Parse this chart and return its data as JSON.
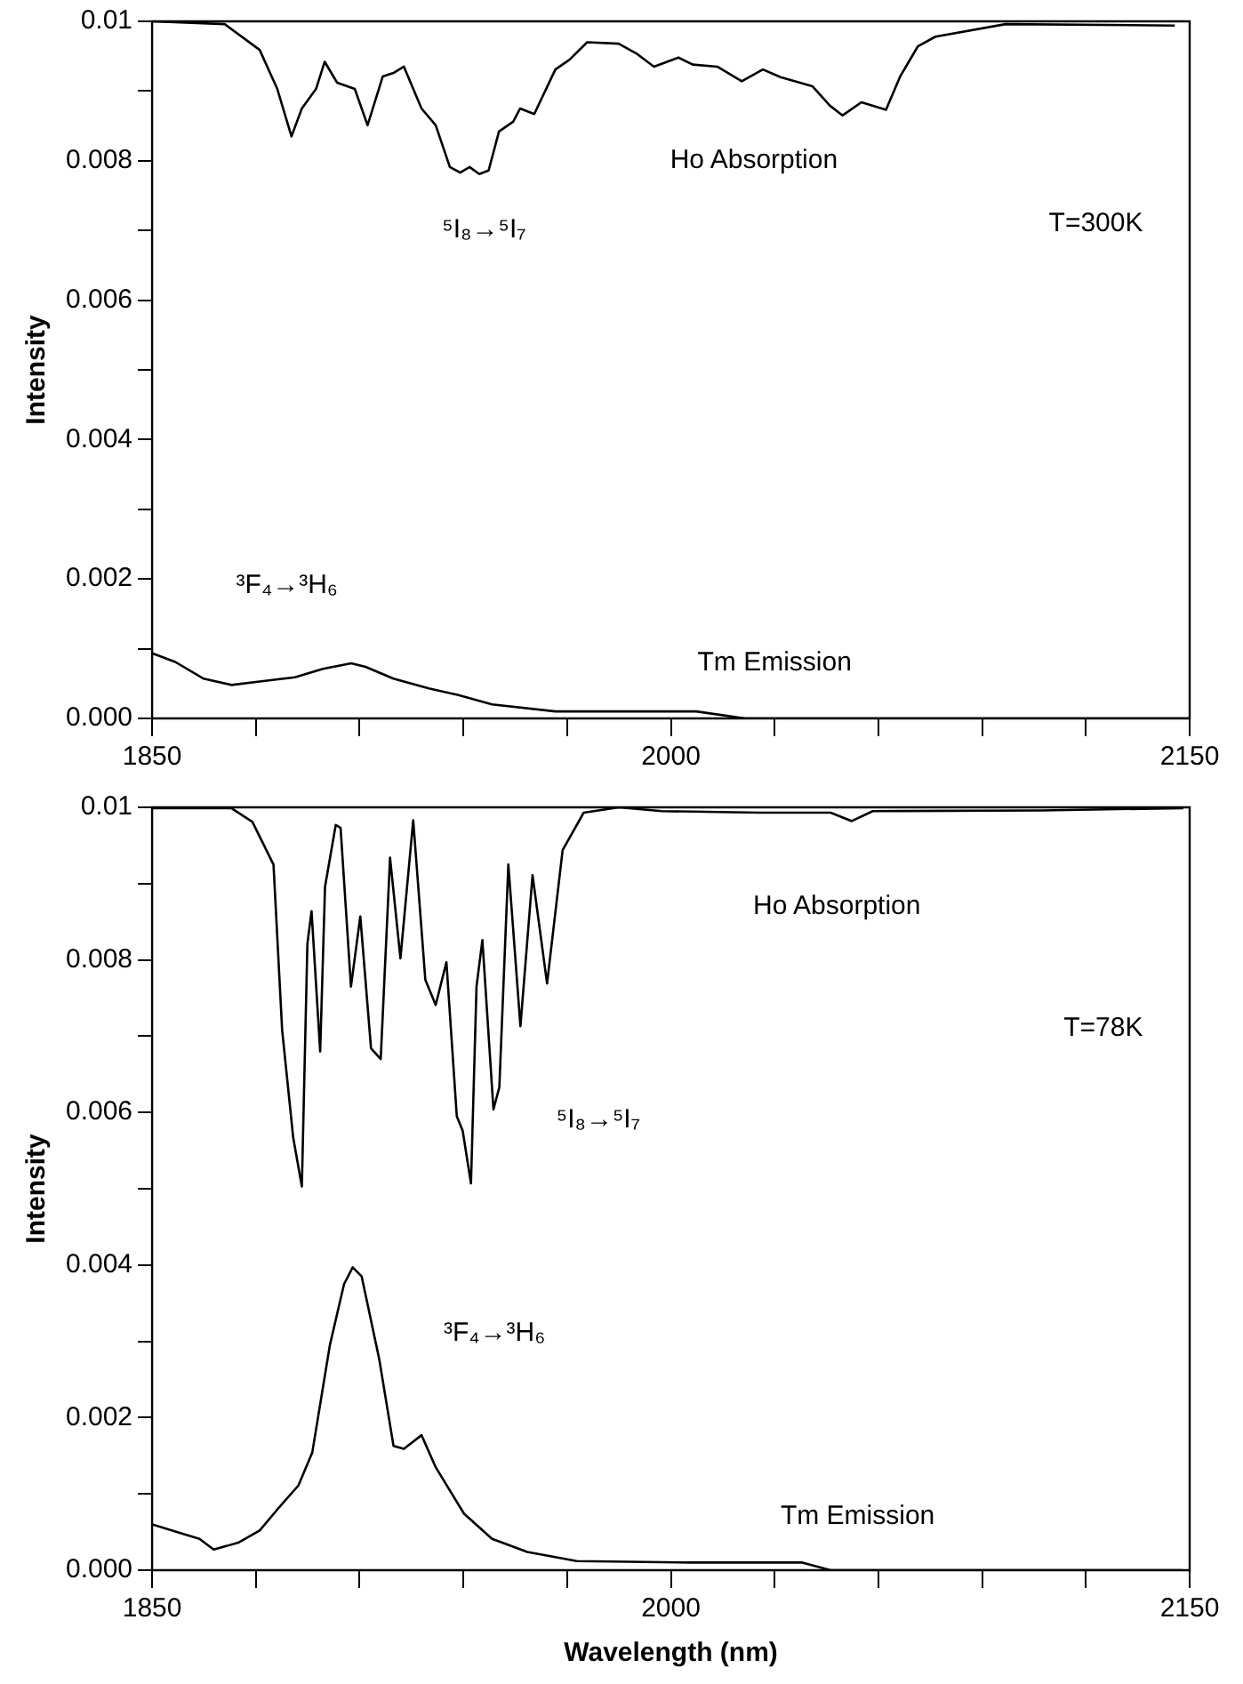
{
  "chart_data": [
    {
      "type": "line",
      "xlabel": null,
      "ylabel": "Intensity",
      "xlim": [
        1850,
        2150
      ],
      "ylim": [
        0,
        0.01
      ],
      "xticks": [
        1850,
        {
          "value": 1880,
          "label": null
        },
        {
          "value": 1910,
          "label": null
        },
        {
          "value": 1940,
          "label": null
        },
        {
          "value": 1970,
          "label": null
        },
        2000,
        {
          "value": 2030,
          "label": null
        },
        {
          "value": 2060,
          "label": null
        },
        {
          "value": 2090,
          "label": null
        },
        {
          "value": 2120,
          "label": null
        },
        2150
      ],
      "yticks": [
        {
          "value": 0,
          "label": "0.000"
        },
        {
          "value": 0.001,
          "label": null
        },
        {
          "value": 0.002,
          "label": "0.002"
        },
        {
          "value": 0.003,
          "label": null
        },
        {
          "value": 0.004,
          "label": "0.004"
        },
        {
          "value": 0.005,
          "label": null
        },
        {
          "value": 0.006,
          "label": "0.006"
        },
        {
          "value": 0.007,
          "label": null
        },
        {
          "value": 0.008,
          "label": "0.008"
        },
        {
          "value": 0.009,
          "label": null
        },
        0.01
      ],
      "grid": false,
      "legend": false,
      "marker": "none",
      "line_style": "solid",
      "series": [
        {
          "name": "Ho Absorption",
          "color": "#000000",
          "x": [
            1850,
            1871,
            1881.1,
            1886.2,
            1890.3,
            1893.3,
            1897.4,
            1899.9,
            1903.5,
            1908.6,
            1912.3,
            1916.7,
            1919.8,
            1922.8,
            1927.9,
            1932,
            1936.1,
            1939.1,
            1941.8,
            1944.6,
            1947.3,
            1950.3,
            1954.4,
            1956.4,
            1960.5,
            1966.6,
            1970.7,
            1975.8,
            1984.9,
            1990,
            1995.1,
            2002.2,
            2006.3,
            2013.4,
            2020.5,
            2026.6,
            2031.7,
            2040.9,
            2046,
            2049.6,
            2055.1,
            2062.2,
            2066.3,
            2071.4,
            2076.5,
            2096.8,
            2145.7
          ],
          "values": [
            0.01,
            0.00996,
            0.00959,
            0.00903,
            0.00835,
            0.00875,
            0.00903,
            0.00942,
            0.00912,
            0.00903,
            0.00851,
            0.00921,
            0.00926,
            0.00935,
            0.00875,
            0.00851,
            0.00791,
            0.00783,
            0.00791,
            0.00781,
            0.00786,
            0.00842,
            0.00856,
            0.00875,
            0.00867,
            0.00931,
            0.00945,
            0.0097,
            0.00968,
            0.00954,
            0.00935,
            0.00948,
            0.00938,
            0.00935,
            0.00914,
            0.00931,
            0.0092,
            0.00907,
            0.00879,
            0.00865,
            0.00884,
            0.00873,
            0.00921,
            0.00964,
            0.00978,
            0.00996,
            0.00994
          ]
        },
        {
          "name": "Tm Emission",
          "color": "#000000",
          "x": [
            1850.2,
            1856.7,
            1864.9,
            1873,
            1881.1,
            1891.3,
            1899.4,
            1907.6,
            1911.7,
            1919.8,
            1930,
            1938.1,
            1948.3,
            1966.6,
            1991,
            2007.3,
            2021.5,
            2048,
            2150
          ],
          "values": [
            0.00093,
            0.00081,
            0.00057,
            0.00048,
            0.00053,
            0.00059,
            0.00071,
            0.00079,
            0.00074,
            0.00057,
            0.00043,
            0.00034,
            0.0002,
            0.0001,
            0.0001,
            0.0001,
            0,
            0,
            0
          ]
        }
      ],
      "annotations": [
        "⁵I₈→⁵I₇",
        "³F₄→³H₆",
        "T=300K"
      ]
    },
    {
      "type": "line",
      "xlabel": "Wavelength (nm)",
      "ylabel": "Intensity",
      "xlim": [
        1850,
        2150
      ],
      "ylim": [
        0,
        0.01
      ],
      "xticks": [
        1850,
        {
          "value": 1880,
          "label": null
        },
        {
          "value": 1910,
          "label": null
        },
        {
          "value": 1940,
          "label": null
        },
        {
          "value": 1970,
          "label": null
        },
        2000,
        {
          "value": 2030,
          "label": null
        },
        {
          "value": 2060,
          "label": null
        },
        {
          "value": 2090,
          "label": null
        },
        {
          "value": 2120,
          "label": null
        },
        2150
      ],
      "yticks": [
        {
          "value": 0,
          "label": "0.000"
        },
        {
          "value": 0.001,
          "label": null
        },
        {
          "value": 0.002,
          "label": "0.002"
        },
        {
          "value": 0.003,
          "label": null
        },
        {
          "value": 0.004,
          "label": "0.004"
        },
        {
          "value": 0.005,
          "label": null
        },
        {
          "value": 0.006,
          "label": "0.006"
        },
        {
          "value": 0.007,
          "label": null
        },
        {
          "value": 0.008,
          "label": "0.008"
        },
        {
          "value": 0.009,
          "label": null
        },
        0.01
      ],
      "grid": false,
      "legend": false,
      "marker": "none",
      "line_style": "solid",
      "series": [
        {
          "name": "Ho Absorption",
          "color": "#000000",
          "x": [
            1850,
            1872.9,
            1879,
            1885.1,
            1887.6,
            1890.8,
            1893.3,
            1894.9,
            1896.1,
            1898.6,
            1900,
            1903.1,
            1904.5,
            1907.5,
            1910.2,
            1913.3,
            1916.1,
            1918.8,
            1921.8,
            1925.5,
            1929,
            1932,
            1935.1,
            1938.1,
            1939.8,
            1942.2,
            1943.8,
            1945.5,
            1948.7,
            1950.4,
            1953,
            1956.5,
            1960,
            1964.2,
            1968.7,
            1974.8,
            1985,
            1997.3,
            2025.8,
            2046.2,
            2052.3,
            2058.4,
            2107.4,
            2148.2
          ],
          "values": [
            0.00999,
            0.00999,
            0.00981,
            0.00925,
            0.00708,
            0.00567,
            0.00503,
            0.00821,
            0.00864,
            0.0068,
            0.00896,
            0.00977,
            0.00973,
            0.00765,
            0.00857,
            0.00684,
            0.0067,
            0.00934,
            0.00802,
            0.00983,
            0.00774,
            0.00741,
            0.00797,
            0.00595,
            0.00576,
            0.00507,
            0.00765,
            0.00826,
            0.00604,
            0.00633,
            0.00925,
            0.00713,
            0.00911,
            0.00769,
            0.00944,
            0.00993,
            0.01,
            0.00995,
            0.00993,
            0.00993,
            0.00982,
            0.00995,
            0.00996,
            0.00999
          ]
        },
        {
          "name": "Tm Emission",
          "color": "#000000",
          "x": [
            1850,
            1858.6,
            1863.7,
            1867.8,
            1874.9,
            1881.1,
            1886.1,
            1892.3,
            1896.3,
            1901.4,
            1905.5,
            1908,
            1910.6,
            1915.7,
            1919.8,
            1922.8,
            1927.9,
            1932,
            1940.2,
            1948.3,
            1958.5,
            1972.8,
            2005.4,
            2038,
            2046.2,
            2058.4,
            2148
          ],
          "values": [
            0.0006,
            0.00048,
            0.00041,
            0.00027,
            0.00036,
            0.00052,
            0.00079,
            0.00111,
            0.00154,
            0.00295,
            0.00375,
            0.00397,
            0.00385,
            0.00276,
            0.00163,
            0.00159,
            0.00177,
            0.00135,
            0.00074,
            0.00041,
            0.00024,
            0.00012,
            0.0001,
            0.0001,
            0,
            0,
            0
          ]
        }
      ],
      "annotations": [
        "⁵I₈→⁵I₇",
        "³F₄→³H₆",
        "T=78K"
      ]
    }
  ]
}
